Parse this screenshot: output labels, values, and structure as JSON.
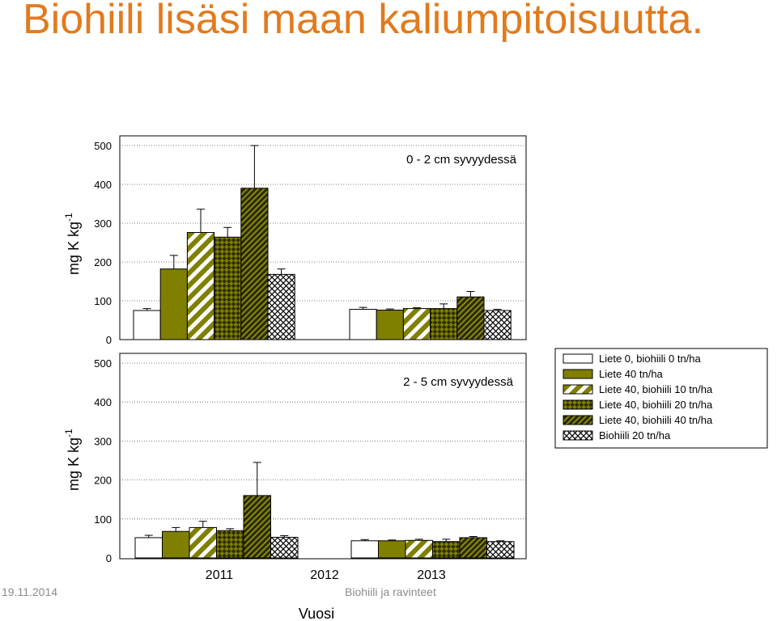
{
  "title": "Biohiili lisäsi maan kaliumpitoisuutta.",
  "footer": {
    "date": "19.11.2014",
    "center": "Biohiili ja ravinteet"
  },
  "colors": {
    "title": "#e07b1e",
    "olive": "#7f7f00",
    "footer": "#8c8c8c"
  },
  "chart_data": [
    {
      "type": "bar",
      "panel_label": "0 - 2 cm syvyydessä",
      "ylabel": "mg K kg-1",
      "ylim": [
        0,
        500
      ],
      "yticks": [
        0,
        100,
        200,
        300,
        400,
        500
      ],
      "grid": "horizontal dotted",
      "categories": [
        "2011",
        "2012",
        "2013"
      ],
      "series": [
        {
          "name": "Liete 0, biohiili 0 tn/ha",
          "values": [
            75,
            78,
            null
          ],
          "errors": [
            5,
            5,
            null
          ]
        },
        {
          "name": "Liete 40 tn/ha",
          "values": [
            182,
            76,
            null
          ],
          "errors": [
            35,
            3,
            null
          ]
        },
        {
          "name": "Liete 40, biohiili 10 tn/ha",
          "values": [
            276,
            80,
            null
          ],
          "errors": [
            60,
            2,
            null
          ]
        },
        {
          "name": "Liete 40, biohiili 20 tn/ha",
          "values": [
            264,
            80,
            null
          ],
          "errors": [
            25,
            12,
            null
          ]
        },
        {
          "name": "Liete 40, biohiili 40 tn/ha",
          "values": [
            390,
            110,
            null
          ],
          "errors": [
            110,
            14,
            null
          ]
        },
        {
          "name": "Biohiili 20 tn/ha",
          "values": [
            168,
            75,
            null
          ],
          "errors": [
            14,
            3,
            null
          ]
        }
      ]
    },
    {
      "type": "bar",
      "panel_label": "2 - 5 cm syvyydessä",
      "ylabel": "mg K kg-1",
      "xlabel": "Vuosi",
      "ylim": [
        0,
        500
      ],
      "yticks": [
        0,
        100,
        200,
        300,
        400,
        500
      ],
      "grid": "horizontal dotted",
      "categories": [
        "2011",
        "2012",
        "2013"
      ],
      "series": [
        {
          "name": "Liete 0, biohiili 0 tn/ha",
          "values": [
            52,
            44,
            null
          ],
          "errors": [
            6,
            3,
            null
          ]
        },
        {
          "name": "Liete 40 tn/ha",
          "values": [
            68,
            44,
            null
          ],
          "errors": [
            10,
            2,
            null
          ]
        },
        {
          "name": "Liete 40, biohiili 10 tn/ha",
          "values": [
            78,
            45,
            null
          ],
          "errors": [
            16,
            3,
            null
          ]
        },
        {
          "name": "Liete 40, biohiili 20 tn/ha",
          "values": [
            70,
            42,
            null
          ],
          "errors": [
            5,
            6,
            null
          ]
        },
        {
          "name": "Liete 40, biohiili 40 tn/ha",
          "values": [
            160,
            52,
            null
          ],
          "errors": [
            85,
            3,
            null
          ]
        },
        {
          "name": "Biohiili 20 tn/ha",
          "values": [
            53,
            42,
            null
          ],
          "errors": [
            4,
            2,
            null
          ]
        }
      ]
    }
  ],
  "legend": {
    "items": [
      {
        "label": "Liete 0, biohiili 0 tn/ha",
        "pattern": "white"
      },
      {
        "label": "Liete 40 tn/ha",
        "pattern": "olive"
      },
      {
        "label": "Liete 40, biohiili 10 tn/ha",
        "pattern": "diag-wide"
      },
      {
        "label": "Liete 40, biohiili 20 tn/ha",
        "pattern": "check"
      },
      {
        "label": "Liete 40, biohiili 40 tn/ha",
        "pattern": "diag-dense"
      },
      {
        "label": "Biohiili 20 tn/ha",
        "pattern": "cross"
      }
    ]
  }
}
